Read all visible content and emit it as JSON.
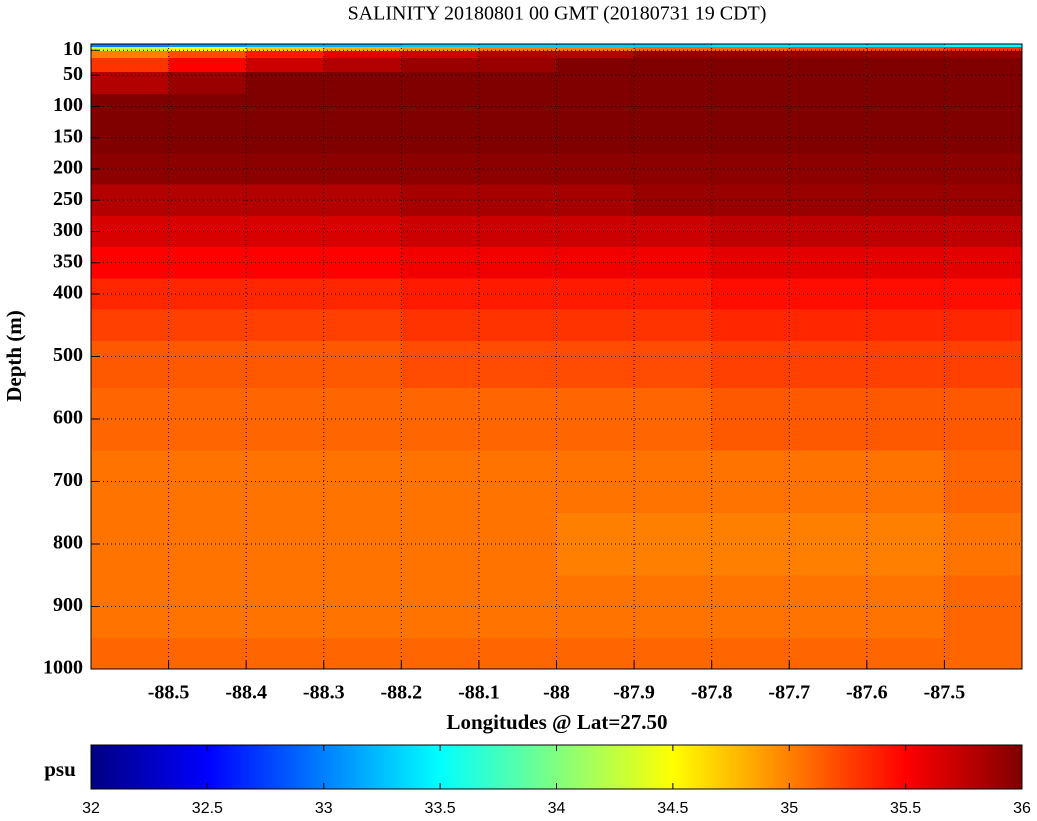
{
  "chart_data": {
    "type": "heatmap",
    "title": "SALINITY 20180801 00 GMT (20180731 19 CDT)",
    "xlabel": "Longitudes @ Lat=27.50",
    "ylabel": "Depth (m)",
    "colorbar_label": "psu",
    "colormap": "jet",
    "xlim": [
      -88.6,
      -87.4
    ],
    "ylim": [
      0,
      1000
    ],
    "y_reversed": true,
    "grid": true,
    "xticks": [
      -88.5,
      -88.4,
      -88.3,
      -88.2,
      -88.1,
      -88,
      -87.9,
      -87.8,
      -87.7,
      -87.6,
      -87.5
    ],
    "yticks": [
      10,
      50,
      100,
      150,
      200,
      250,
      300,
      350,
      400,
      500,
      600,
      700,
      800,
      900,
      1000
    ],
    "clim": [
      32,
      36
    ],
    "cticks": [
      32,
      32.5,
      33,
      33.5,
      34,
      34.5,
      35,
      35.5,
      36
    ],
    "x": [
      -88.55,
      -88.45,
      -88.35,
      -88.25,
      -88.15,
      -88.05,
      -87.95,
      -87.85,
      -87.75,
      -87.65,
      -87.55,
      -87.45
    ],
    "y": [
      2,
      8,
      15,
      30,
      60,
      100,
      150,
      200,
      250,
      300,
      350,
      400,
      450,
      500,
      600,
      700,
      800,
      900,
      1000
    ],
    "z": [
      [
        33.0,
        33.1,
        33.2,
        33.2,
        33.3,
        33.3,
        33.3,
        33.3,
        33.4,
        33.4,
        33.4,
        33.5
      ],
      [
        34.3,
        34.5,
        34.7,
        34.8,
        34.9,
        35.0,
        35.0,
        35.1,
        35.1,
        35.2,
        35.2,
        35.3
      ],
      [
        35.0,
        35.2,
        35.4,
        35.6,
        35.7,
        35.8,
        35.8,
        35.9,
        35.9,
        35.9,
        35.9,
        35.9
      ],
      [
        35.3,
        35.5,
        35.7,
        35.8,
        35.9,
        35.9,
        36.0,
        36.0,
        36.0,
        36.0,
        36.0,
        36.0
      ],
      [
        35.8,
        35.9,
        36.0,
        36.0,
        36.0,
        36.0,
        36.0,
        36.0,
        36.0,
        36.0,
        36.0,
        36.0
      ],
      [
        36.0,
        36.0,
        36.0,
        36.0,
        36.0,
        36.0,
        36.0,
        36.0,
        36.0,
        36.0,
        36.0,
        36.0
      ],
      [
        36.0,
        36.0,
        36.0,
        36.0,
        36.0,
        36.0,
        36.0,
        36.0,
        36.0,
        36.0,
        36.0,
        36.0
      ],
      [
        35.95,
        35.95,
        35.95,
        35.95,
        35.95,
        35.95,
        35.95,
        35.95,
        35.95,
        35.95,
        35.95,
        35.95
      ],
      [
        35.8,
        35.8,
        35.8,
        35.8,
        35.85,
        35.85,
        35.85,
        35.9,
        35.9,
        35.9,
        35.9,
        35.9
      ],
      [
        35.65,
        35.65,
        35.65,
        35.65,
        35.7,
        35.7,
        35.7,
        35.7,
        35.75,
        35.75,
        35.75,
        35.75
      ],
      [
        35.5,
        35.5,
        35.5,
        35.5,
        35.55,
        35.55,
        35.55,
        35.55,
        35.6,
        35.6,
        35.6,
        35.6
      ],
      [
        35.35,
        35.35,
        35.35,
        35.35,
        35.4,
        35.4,
        35.4,
        35.4,
        35.45,
        35.45,
        35.45,
        35.45
      ],
      [
        35.25,
        35.25,
        35.25,
        35.25,
        35.3,
        35.3,
        35.3,
        35.3,
        35.35,
        35.35,
        35.35,
        35.35
      ],
      [
        35.15,
        35.15,
        35.15,
        35.15,
        35.2,
        35.2,
        35.2,
        35.2,
        35.25,
        35.25,
        35.25,
        35.25
      ],
      [
        35.1,
        35.1,
        35.1,
        35.1,
        35.1,
        35.1,
        35.1,
        35.1,
        35.15,
        35.15,
        35.15,
        35.15
      ],
      [
        35.05,
        35.05,
        35.05,
        35.05,
        35.05,
        35.05,
        35.05,
        35.05,
        35.05,
        35.05,
        35.05,
        35.1
      ],
      [
        35.05,
        35.05,
        35.05,
        35.05,
        35.05,
        35.05,
        35.0,
        35.0,
        35.0,
        35.0,
        35.0,
        35.05
      ],
      [
        35.05,
        35.05,
        35.05,
        35.05,
        35.05,
        35.05,
        35.05,
        35.05,
        35.05,
        35.05,
        35.05,
        35.1
      ],
      [
        35.1,
        35.1,
        35.1,
        35.1,
        35.1,
        35.1,
        35.1,
        35.1,
        35.1,
        35.1,
        35.1,
        35.1
      ]
    ]
  }
}
